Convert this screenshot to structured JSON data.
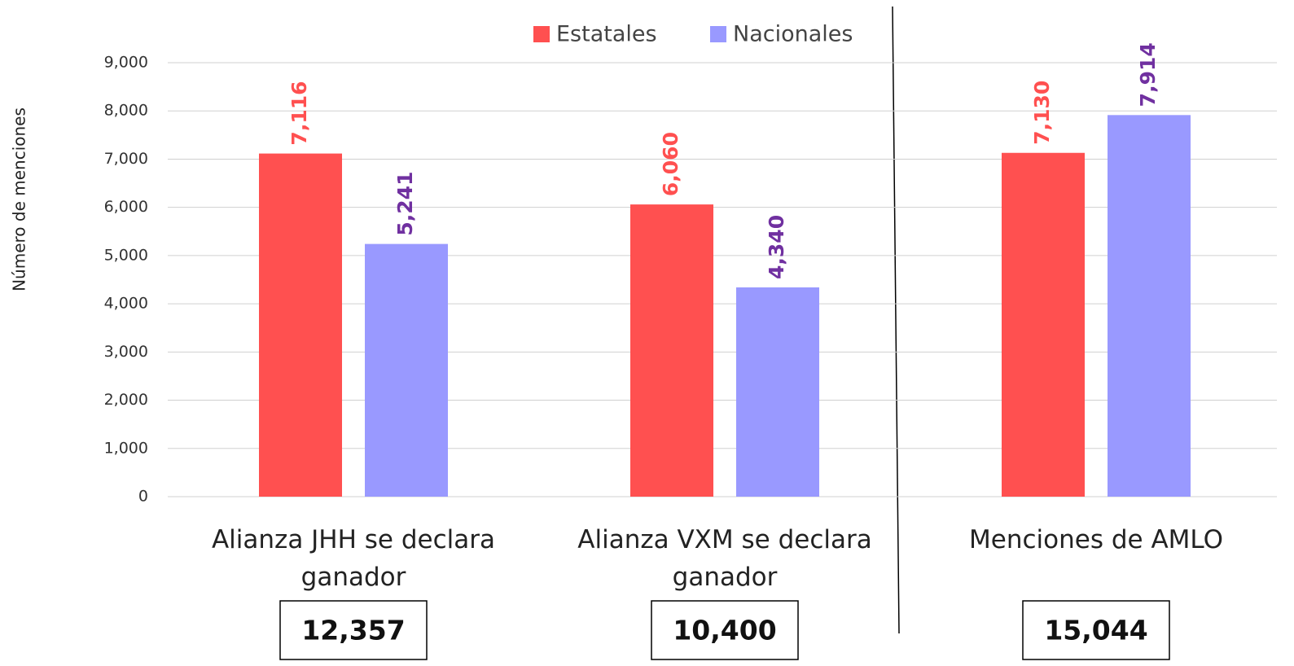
{
  "chart_data": {
    "type": "bar",
    "y_axis_label": "Número de menciones",
    "categories": [
      "Alianza JHH se declara ganador",
      "Alianza VXM se declara ganador",
      "Menciones de AMLO"
    ],
    "series": [
      {
        "name": "Estatales",
        "color": "#ff5050",
        "label_color": "#ff5050",
        "values": [
          7116,
          6060,
          7130
        ],
        "value_labels": [
          "7,116",
          "6,060",
          "7,130"
        ]
      },
      {
        "name": "Nacionales",
        "color": "#9999ff",
        "label_color": "#7030a0",
        "values": [
          5241,
          4340,
          7914
        ],
        "value_labels": [
          "5,241",
          "4,340",
          "7,914"
        ]
      }
    ],
    "totals": [
      12357,
      10400,
      15044
    ],
    "total_labels": [
      "12,357",
      "10,400",
      "15,044"
    ],
    "ylim": [
      0,
      9000
    ],
    "yticks": [
      0,
      {
        "value": 1000,
        "label": "1,000"
      },
      {
        "value": 2000,
        "label": "2,000"
      },
      {
        "value": 3000,
        "label": "3,000"
      },
      {
        "value": 4000,
        "label": "4,000"
      },
      {
        "value": 5000,
        "label": "5,000"
      },
      {
        "value": 6000,
        "label": "6,000"
      },
      {
        "value": 7000,
        "label": "7,000"
      },
      {
        "value": 8000,
        "label": "8,000"
      },
      {
        "value": 9000,
        "label": "9,000"
      }
    ],
    "grid": true,
    "legend": "top"
  }
}
